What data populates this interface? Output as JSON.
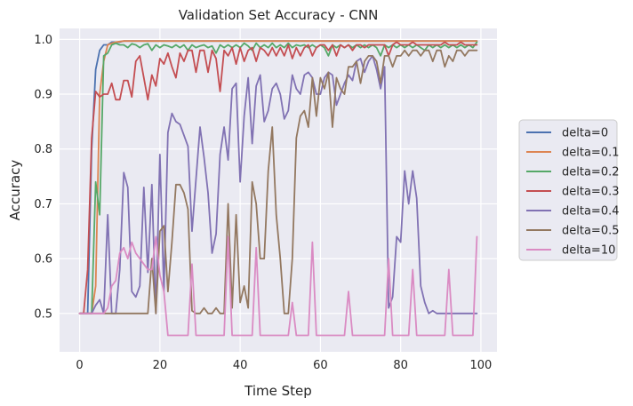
{
  "chart_data": {
    "type": "line",
    "title": "Validation Set Accuracy - CNN",
    "xlabel": "Time Step",
    "ylabel": "Accuracy",
    "xlim": [
      -5,
      104
    ],
    "ylim": [
      0.43,
      1.02
    ],
    "xticks": [
      0,
      20,
      40,
      60,
      80,
      100
    ],
    "yticks": [
      0.5,
      0.6,
      0.7,
      0.8,
      0.9,
      1.0
    ],
    "ytick_labels": [
      "0.5",
      "0.6",
      "0.7",
      "0.8",
      "0.9",
      "1.0"
    ],
    "grid": true,
    "legend_position": "right",
    "x": [
      0,
      1,
      2,
      3,
      4,
      5,
      6,
      7,
      8,
      9,
      10,
      11,
      12,
      13,
      14,
      15,
      16,
      17,
      18,
      19,
      20,
      21,
      22,
      23,
      24,
      25,
      26,
      27,
      28,
      29,
      30,
      31,
      32,
      33,
      34,
      35,
      36,
      37,
      38,
      39,
      40,
      41,
      42,
      43,
      44,
      45,
      46,
      47,
      48,
      49,
      50,
      51,
      52,
      53,
      54,
      55,
      56,
      57,
      58,
      59,
      60,
      61,
      62,
      63,
      64,
      65,
      66,
      67,
      68,
      69,
      70,
      71,
      72,
      73,
      74,
      75,
      76,
      77,
      78,
      79,
      80,
      81,
      82,
      83,
      84,
      85,
      86,
      87,
      88,
      89,
      90,
      91,
      92,
      93,
      94,
      95,
      96,
      97,
      98,
      99
    ],
    "series": [
      {
        "name": "delta=0",
        "color": "#4c72b0",
        "values": [
          0.5,
          0.5,
          0.5,
          0.8,
          0.945,
          0.98,
          0.99,
          0.99,
          0.995,
          0.995,
          0.995,
          0.997,
          0.997,
          0.997,
          0.997,
          0.997,
          0.997,
          0.997,
          0.997,
          0.997,
          0.997,
          0.997,
          0.997,
          0.997,
          0.997,
          0.997,
          0.997,
          0.997,
          0.997,
          0.997,
          0.997,
          0.997,
          0.997,
          0.997,
          0.997,
          0.997,
          0.997,
          0.997,
          0.997,
          0.997,
          0.997,
          0.997,
          0.997,
          0.997,
          0.997,
          0.997,
          0.997,
          0.997,
          0.997,
          0.997,
          0.997,
          0.997,
          0.997,
          0.997,
          0.997,
          0.997,
          0.997,
          0.997,
          0.997,
          0.997,
          0.997,
          0.997,
          0.997,
          0.997,
          0.997,
          0.997,
          0.997,
          0.997,
          0.997,
          0.997,
          0.997,
          0.997,
          0.997,
          0.997,
          0.997,
          0.997,
          0.997,
          0.997,
          0.997,
          0.997,
          0.997,
          0.997,
          0.997,
          0.997,
          0.997,
          0.997,
          0.997,
          0.997,
          0.997,
          0.997,
          0.997,
          0.997,
          0.997,
          0.997,
          0.997,
          0.997,
          0.997,
          0.997,
          0.997,
          0.997
        ]
      },
      {
        "name": "delta=0.1",
        "color": "#dd8452",
        "values": [
          0.5,
          0.5,
          0.5,
          0.5,
          0.55,
          0.9,
          0.96,
          0.99,
          0.993,
          0.995,
          0.996,
          0.997,
          0.997,
          0.997,
          0.997,
          0.997,
          0.997,
          0.997,
          0.997,
          0.997,
          0.997,
          0.997,
          0.997,
          0.997,
          0.997,
          0.997,
          0.997,
          0.997,
          0.997,
          0.997,
          0.997,
          0.997,
          0.997,
          0.997,
          0.997,
          0.997,
          0.997,
          0.997,
          0.997,
          0.997,
          0.997,
          0.997,
          0.997,
          0.997,
          0.997,
          0.997,
          0.997,
          0.997,
          0.997,
          0.997,
          0.997,
          0.997,
          0.997,
          0.997,
          0.997,
          0.997,
          0.997,
          0.997,
          0.997,
          0.997,
          0.997,
          0.997,
          0.997,
          0.997,
          0.997,
          0.997,
          0.997,
          0.997,
          0.997,
          0.997,
          0.997,
          0.997,
          0.997,
          0.997,
          0.997,
          0.997,
          0.997,
          0.997,
          0.997,
          0.997,
          0.997,
          0.997,
          0.997,
          0.997,
          0.997,
          0.997,
          0.997,
          0.997,
          0.997,
          0.997,
          0.997,
          0.997,
          0.997,
          0.997,
          0.997,
          0.997,
          0.997,
          0.997,
          0.997,
          0.997
        ]
      },
      {
        "name": "delta=0.2",
        "color": "#55a868",
        "values": [
          0.5,
          0.5,
          0.5,
          0.5,
          0.74,
          0.68,
          0.97,
          0.975,
          0.99,
          0.993,
          0.99,
          0.99,
          0.985,
          0.992,
          0.99,
          0.985,
          0.99,
          0.992,
          0.98,
          0.99,
          0.985,
          0.99,
          0.988,
          0.985,
          0.99,
          0.985,
          0.99,
          0.98,
          0.99,
          0.985,
          0.988,
          0.99,
          0.985,
          0.988,
          0.975,
          0.99,
          0.985,
          0.99,
          0.985,
          0.99,
          0.985,
          0.993,
          0.988,
          0.98,
          0.993,
          0.985,
          0.99,
          0.985,
          0.993,
          0.985,
          0.99,
          0.985,
          0.993,
          0.985,
          0.99,
          0.988,
          0.99,
          0.985,
          0.99,
          0.985,
          0.99,
          0.985,
          0.97,
          0.99,
          0.985,
          0.99,
          0.985,
          0.99,
          0.985,
          0.99,
          0.985,
          0.99,
          0.985,
          0.99,
          0.985,
          0.97,
          0.99,
          0.985,
          0.99,
          0.985,
          0.99,
          0.985,
          0.99,
          0.985,
          0.99,
          0.985,
          0.98,
          0.99,
          0.985,
          0.99,
          0.985,
          0.99,
          0.985,
          0.99,
          0.985,
          0.99,
          0.985,
          0.99,
          0.985,
          0.995
        ]
      },
      {
        "name": "delta=0.3",
        "color": "#c44e52",
        "values": [
          0.5,
          0.5,
          0.58,
          0.82,
          0.905,
          0.895,
          0.9,
          0.9,
          0.92,
          0.89,
          0.89,
          0.925,
          0.925,
          0.895,
          0.96,
          0.97,
          0.93,
          0.89,
          0.935,
          0.915,
          0.965,
          0.955,
          0.975,
          0.95,
          0.93,
          0.975,
          0.96,
          0.98,
          0.98,
          0.94,
          0.98,
          0.98,
          0.94,
          0.98,
          0.965,
          0.905,
          0.98,
          0.97,
          0.985,
          0.955,
          0.985,
          0.96,
          0.98,
          0.985,
          0.96,
          0.985,
          0.98,
          0.97,
          0.985,
          0.97,
          0.985,
          0.97,
          0.99,
          0.965,
          0.985,
          0.97,
          0.985,
          0.99,
          0.97,
          0.985,
          0.99,
          0.99,
          0.98,
          0.99,
          0.97,
          0.99,
          0.985,
          0.99,
          0.98,
          0.99,
          0.99,
          0.985,
          0.99,
          0.99,
          0.99,
          0.99,
          0.99,
          0.97,
          0.99,
          0.995,
          0.99,
          0.99,
          0.99,
          0.995,
          0.99,
          0.99,
          0.99,
          0.99,
          0.99,
          0.99,
          0.99,
          0.995,
          0.99,
          0.99,
          0.99,
          0.995,
          0.99,
          0.99,
          0.99,
          0.99
        ]
      },
      {
        "name": "delta=0.4",
        "color": "#8172b3",
        "values": [
          0.5,
          0.5,
          0.5,
          0.5,
          0.515,
          0.525,
          0.5,
          0.68,
          0.5,
          0.5,
          0.58,
          0.757,
          0.73,
          0.54,
          0.53,
          0.55,
          0.73,
          0.575,
          0.735,
          0.5,
          0.79,
          0.54,
          0.83,
          0.865,
          0.85,
          0.845,
          0.825,
          0.805,
          0.65,
          0.745,
          0.84,
          0.785,
          0.72,
          0.61,
          0.645,
          0.79,
          0.84,
          0.78,
          0.91,
          0.92,
          0.74,
          0.86,
          0.93,
          0.81,
          0.915,
          0.935,
          0.85,
          0.87,
          0.91,
          0.92,
          0.9,
          0.855,
          0.87,
          0.935,
          0.91,
          0.9,
          0.935,
          0.94,
          0.93,
          0.9,
          0.9,
          0.93,
          0.94,
          0.935,
          0.88,
          0.9,
          0.92,
          0.935,
          0.925,
          0.96,
          0.965,
          0.94,
          0.96,
          0.97,
          0.945,
          0.91,
          0.95,
          0.51,
          0.53,
          0.64,
          0.63,
          0.76,
          0.7,
          0.76,
          0.71,
          0.55,
          0.52,
          0.5,
          0.505,
          0.5,
          0.5,
          0.5,
          0.5,
          0.5,
          0.5,
          0.5,
          0.5,
          0.5,
          0.5,
          0.5
        ]
      },
      {
        "name": "delta=0.5",
        "color": "#937860",
        "values": [
          0.5,
          0.5,
          0.5,
          0.5,
          0.5,
          0.5,
          0.5,
          0.5,
          0.5,
          0.5,
          0.5,
          0.5,
          0.5,
          0.5,
          0.5,
          0.5,
          0.5,
          0.5,
          0.6,
          0.5,
          0.65,
          0.66,
          0.54,
          0.63,
          0.735,
          0.735,
          0.72,
          0.69,
          0.505,
          0.5,
          0.5,
          0.51,
          0.5,
          0.5,
          0.51,
          0.5,
          0.5,
          0.7,
          0.51,
          0.68,
          0.52,
          0.55,
          0.51,
          0.74,
          0.7,
          0.6,
          0.6,
          0.76,
          0.84,
          0.68,
          0.6,
          0.5,
          0.5,
          0.6,
          0.82,
          0.86,
          0.87,
          0.84,
          0.93,
          0.86,
          0.93,
          0.91,
          0.94,
          0.84,
          0.93,
          0.91,
          0.9,
          0.95,
          0.95,
          0.96,
          0.92,
          0.96,
          0.97,
          0.97,
          0.96,
          0.92,
          0.97,
          0.97,
          0.95,
          0.97,
          0.97,
          0.98,
          0.97,
          0.98,
          0.98,
          0.97,
          0.98,
          0.98,
          0.96,
          0.98,
          0.98,
          0.95,
          0.97,
          0.96,
          0.98,
          0.98,
          0.97,
          0.98,
          0.98,
          0.98
        ]
      },
      {
        "name": "delta=10",
        "color": "#da8bc3",
        "values": [
          0.5,
          0.5,
          0.5,
          0.5,
          0.5,
          0.5,
          0.5,
          0.51,
          0.55,
          0.56,
          0.61,
          0.62,
          0.6,
          0.63,
          0.61,
          0.6,
          0.59,
          0.58,
          0.58,
          0.64,
          0.57,
          0.54,
          0.46,
          0.46,
          0.46,
          0.46,
          0.46,
          0.46,
          0.59,
          0.46,
          0.46,
          0.46,
          0.46,
          0.46,
          0.46,
          0.46,
          0.46,
          0.64,
          0.46,
          0.46,
          0.46,
          0.46,
          0.46,
          0.46,
          0.62,
          0.46,
          0.46,
          0.46,
          0.46,
          0.46,
          0.46,
          0.46,
          0.46,
          0.52,
          0.46,
          0.46,
          0.46,
          0.46,
          0.63,
          0.46,
          0.46,
          0.46,
          0.46,
          0.46,
          0.46,
          0.46,
          0.46,
          0.54,
          0.46,
          0.46,
          0.46,
          0.46,
          0.46,
          0.46,
          0.46,
          0.46,
          0.46,
          0.6,
          0.46,
          0.46,
          0.46,
          0.46,
          0.46,
          0.58,
          0.46,
          0.46,
          0.46,
          0.46,
          0.46,
          0.46,
          0.46,
          0.46,
          0.58,
          0.46,
          0.46,
          0.46,
          0.46,
          0.46,
          0.46,
          0.64
        ]
      }
    ]
  }
}
